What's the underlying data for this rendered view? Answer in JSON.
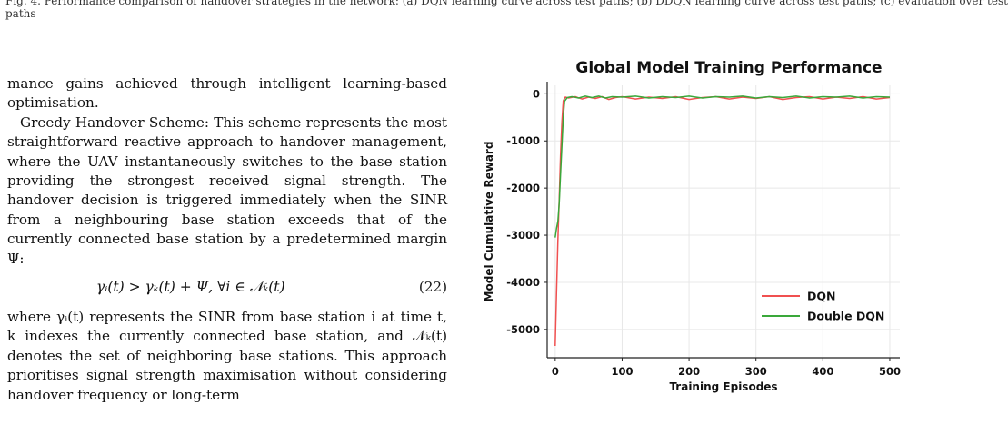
{
  "caption_top": {
    "line1": "Fig. 4. Performance comparison of handover strategies in the network: (a) DQN learning curve across test paths; (b) DDQN learning curve across test paths; (c) evaluation over test",
    "line2": "paths"
  },
  "body": {
    "p1": "mance gains achieved through intelligent learning-based optimisation.",
    "p2": "Greedy Handover Scheme: This scheme represents the most straightforward reactive approach to handover management, where the UAV instantaneously switches to the base station providing the strongest received signal strength. The handover decision is triggered immediately when the SINR from a neighbouring base station exceeds that of the currently connected base station by a predetermined margin Ψ:",
    "equation": "γᵢ(t) > γₖ(t) + Ψ,    ∀i ∈ 𝒩ₖ(t)",
    "equation_number": "(22)",
    "p3": "where γᵢ(t) represents the SINR from base station i at time t, k indexes the currently connected base station, and 𝒩ₖ(t) denotes the set of neighboring base stations. This approach prioritises signal strength maximisation without considering handover frequency or long-term"
  },
  "chart_data": {
    "type": "line",
    "title": "Global Model Training Performance",
    "xlabel": "Training Episodes",
    "ylabel": "Model Cumulative Reward",
    "xlim": [
      -12,
      515
    ],
    "ylim": [
      -5600,
      180
    ],
    "xticks": [
      0,
      100,
      200,
      300,
      400,
      500
    ],
    "yticks": [
      0,
      -1000,
      -2000,
      -3000,
      -4000,
      -5000
    ],
    "grid": true,
    "legend_position": "lower-right",
    "series": [
      {
        "name": "DQN",
        "color": "#f05050",
        "points": [
          [
            0,
            -5350
          ],
          [
            2,
            -4200
          ],
          [
            4,
            -3100
          ],
          [
            6,
            -2200
          ],
          [
            8,
            -1300
          ],
          [
            10,
            -600
          ],
          [
            12,
            -150
          ],
          [
            15,
            -70
          ],
          [
            20,
            -90
          ],
          [
            30,
            -60
          ],
          [
            40,
            -110
          ],
          [
            50,
            -70
          ],
          [
            60,
            -100
          ],
          [
            70,
            -60
          ],
          [
            80,
            -120
          ],
          [
            90,
            -80
          ],
          [
            100,
            -60
          ],
          [
            120,
            -110
          ],
          [
            140,
            -70
          ],
          [
            160,
            -100
          ],
          [
            180,
            -60
          ],
          [
            200,
            -120
          ],
          [
            220,
            -80
          ],
          [
            240,
            -60
          ],
          [
            260,
            -110
          ],
          [
            280,
            -70
          ],
          [
            300,
            -100
          ],
          [
            320,
            -60
          ],
          [
            340,
            -120
          ],
          [
            360,
            -80
          ],
          [
            380,
            -60
          ],
          [
            400,
            -110
          ],
          [
            420,
            -70
          ],
          [
            440,
            -100
          ],
          [
            460,
            -60
          ],
          [
            480,
            -110
          ],
          [
            500,
            -80
          ]
        ]
      },
      {
        "name": "Double DQN",
        "color": "#3aa83a",
        "points": [
          [
            0,
            -3050
          ],
          [
            2,
            -2850
          ],
          [
            4,
            -2700
          ],
          [
            6,
            -2300
          ],
          [
            8,
            -1700
          ],
          [
            10,
            -1100
          ],
          [
            12,
            -500
          ],
          [
            14,
            -160
          ],
          [
            18,
            -80
          ],
          [
            25,
            -60
          ],
          [
            35,
            -90
          ],
          [
            45,
            -50
          ],
          [
            55,
            -80
          ],
          [
            65,
            -50
          ],
          [
            75,
            -90
          ],
          [
            85,
            -60
          ],
          [
            100,
            -70
          ],
          [
            120,
            -50
          ],
          [
            140,
            -90
          ],
          [
            160,
            -60
          ],
          [
            180,
            -80
          ],
          [
            200,
            -50
          ],
          [
            220,
            -90
          ],
          [
            240,
            -60
          ],
          [
            260,
            -70
          ],
          [
            280,
            -50
          ],
          [
            300,
            -90
          ],
          [
            320,
            -60
          ],
          [
            340,
            -80
          ],
          [
            360,
            -50
          ],
          [
            380,
            -90
          ],
          [
            400,
            -60
          ],
          [
            420,
            -70
          ],
          [
            440,
            -50
          ],
          [
            460,
            -90
          ],
          [
            480,
            -60
          ],
          [
            500,
            -70
          ]
        ]
      }
    ]
  },
  "colors": {
    "dqn": "#f05050",
    "ddqn": "#3aa83a",
    "grid": "#e8e8e8",
    "axis": "#222222"
  }
}
